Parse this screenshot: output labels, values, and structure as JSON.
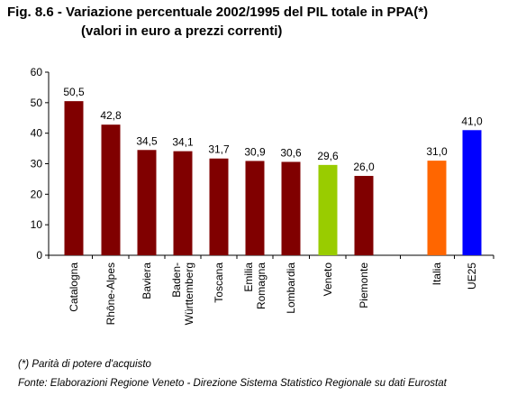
{
  "title": "Fig. 8.6 - Variazione percentuale 2002/1995 del PIL totale in PPA(*)",
  "subtitle": "(valori in euro a prezzi correnti)",
  "footnote": "(*) Parità di potere d'acquisto",
  "source": "Fonte: Elaborazioni Regione Veneto - Direzione Sistema Statistico Regionale su dati Eurostat",
  "chart_data": {
    "type": "bar",
    "categories": [
      [
        "Catalogna"
      ],
      [
        "Rhône-Alpes"
      ],
      [
        "Baviera"
      ],
      [
        "Baden-",
        "Württemberg"
      ],
      [
        "Toscana"
      ],
      [
        "Emilia",
        "Romagna"
      ],
      [
        "Lombardia"
      ],
      [
        "Veneto"
      ],
      [
        "Piemonte"
      ],
      [
        "Italia"
      ],
      [
        "UE25"
      ]
    ],
    "values": [
      50.5,
      42.8,
      34.5,
      34.1,
      31.7,
      30.9,
      30.6,
      29.6,
      26.0,
      31.0,
      41.0
    ],
    "value_labels": [
      "50,5",
      "42,8",
      "34,5",
      "34,1",
      "31,7",
      "30,9",
      "30,6",
      "29,6",
      "26,0",
      "31,0",
      "41,0"
    ],
    "colors": [
      "#800000",
      "#800000",
      "#800000",
      "#800000",
      "#800000",
      "#800000",
      "#800000",
      "#99cc00",
      "#800000",
      "#ff6600",
      "#0000ff"
    ],
    "ylim": [
      0,
      60
    ],
    "yticks": [
      0,
      10,
      20,
      30,
      40,
      50,
      60
    ],
    "xlabel": "",
    "ylabel": "",
    "grid": false,
    "legend": "none"
  }
}
